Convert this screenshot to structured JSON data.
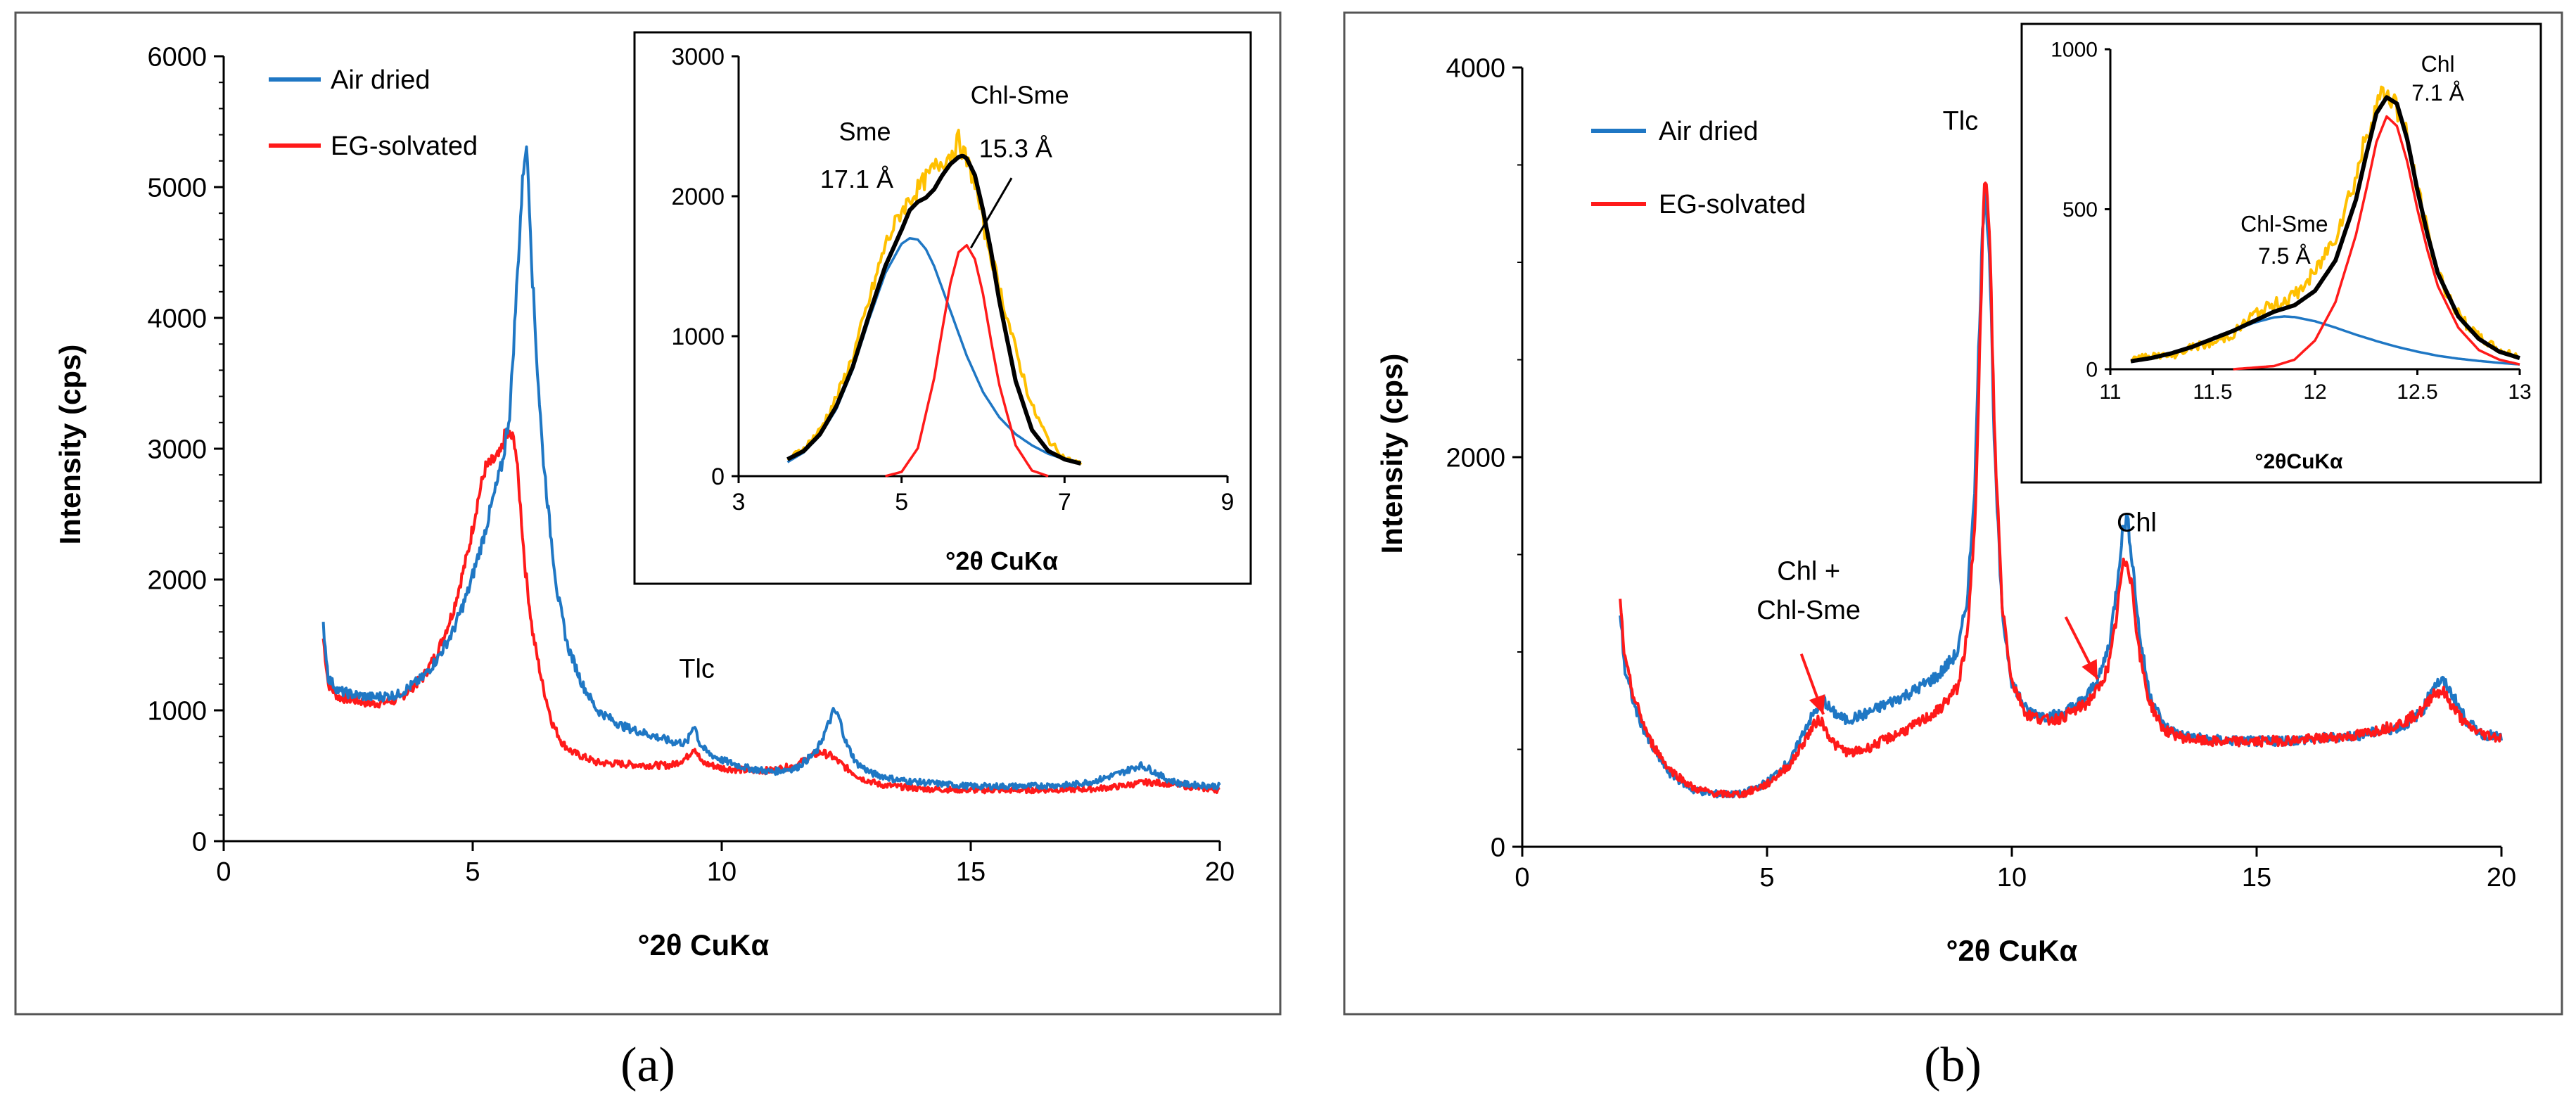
{
  "colors": {
    "air": "#1f77c4",
    "eg": "#ff1a1a",
    "measured": "#ffc000",
    "sum": "#000000",
    "axis": "#000000"
  },
  "chart_data": [
    {
      "type": "line",
      "panel": "(a)",
      "xlabel": "°2θ CuKα",
      "ylabel": "Intensity (cps)",
      "xlim": [
        0,
        20
      ],
      "ylim": [
        0,
        6000
      ],
      "xticks": [
        0,
        5,
        10,
        15,
        20
      ],
      "yticks": [
        0,
        1000,
        2000,
        3000,
        4000,
        5000,
        6000
      ],
      "legend": [
        "Air dried",
        "EG-solvated"
      ],
      "annotations": [
        {
          "text": "Tlc",
          "x": 9.5,
          "y": 1250
        }
      ],
      "series": [
        {
          "name": "Air dried",
          "x": [
            2.0,
            2.1,
            2.3,
            2.6,
            3.0,
            3.5,
            4.0,
            4.3,
            4.6,
            4.9,
            5.2,
            5.4,
            5.6,
            5.75,
            5.85,
            5.95,
            6.02,
            6.06,
            6.1,
            6.15,
            6.2,
            6.3,
            6.4,
            6.55,
            6.7,
            6.9,
            7.2,
            7.5,
            8.0,
            8.5,
            9.0,
            9.3,
            9.45,
            9.55,
            9.7,
            10.0,
            10.5,
            11.0,
            11.5,
            11.9,
            12.15,
            12.25,
            12.35,
            12.5,
            12.7,
            13.0,
            13.5,
            14.0,
            15.0,
            16.0,
            17.0,
            17.5,
            18.0,
            18.4,
            18.6,
            18.9,
            19.2,
            19.5,
            20.0
          ],
          "y": [
            1650,
            1250,
            1150,
            1120,
            1100,
            1120,
            1250,
            1400,
            1600,
            1900,
            2300,
            2600,
            2900,
            3300,
            4000,
            4700,
            5150,
            5300,
            5200,
            4800,
            4300,
            3600,
            3000,
            2400,
            1900,
            1500,
            1200,
            1000,
            880,
            820,
            760,
            750,
            900,
            750,
            680,
            620,
            560,
            530,
            560,
            680,
            900,
            1000,
            950,
            750,
            600,
            520,
            470,
            450,
            420,
            420,
            430,
            460,
            520,
            580,
            550,
            480,
            440,
            430,
            420
          ]
        },
        {
          "name": "EG-solvated",
          "x": [
            2.0,
            2.1,
            2.3,
            2.6,
            3.0,
            3.5,
            4.0,
            4.3,
            4.6,
            4.9,
            5.1,
            5.25,
            5.4,
            5.55,
            5.65,
            5.75,
            5.85,
            5.95,
            6.05,
            6.2,
            6.4,
            6.6,
            6.8,
            7.0,
            7.5,
            8.0,
            8.5,
            9.0,
            9.3,
            9.45,
            9.6,
            10.0,
            10.5,
            11.0,
            11.5,
            11.8,
            12.0,
            12.2,
            12.5,
            12.8,
            13.2,
            14.0,
            15.0,
            16.0,
            17.0,
            17.5,
            18.0,
            18.5,
            19.0,
            19.5,
            20.0
          ],
          "y": [
            1550,
            1200,
            1100,
            1080,
            1050,
            1080,
            1250,
            1450,
            1750,
            2200,
            2600,
            2850,
            2900,
            2950,
            3100,
            3100,
            3050,
            2600,
            2100,
            1600,
            1200,
            900,
            750,
            680,
            600,
            590,
            580,
            580,
            640,
            720,
            600,
            560,
            540,
            540,
            580,
            650,
            680,
            650,
            560,
            480,
            430,
            400,
            390,
            390,
            395,
            400,
            420,
            450,
            440,
            410,
            390
          ]
        }
      ],
      "inset": {
        "xlabel": "°2θ CuKα",
        "xlim": [
          3,
          9
        ],
        "ylim": [
          0,
          3000
        ],
        "xticks": [
          3,
          5,
          7,
          9
        ],
        "yticks": [
          0,
          1000,
          2000,
          3000
        ],
        "annotations": [
          {
            "text": "Sme",
            "x": 4.55,
            "y": 2400
          },
          {
            "text": "17.1 Å",
            "x": 4.45,
            "y": 2060
          },
          {
            "text": "Chl-Sme",
            "x": 6.45,
            "y": 2660
          },
          {
            "text": "15.3 Å",
            "x": 6.4,
            "y": 2280
          }
        ],
        "series": [
          {
            "name": "measured",
            "x": [
              3.6,
              3.8,
              4.0,
              4.2,
              4.4,
              4.6,
              4.8,
              5.0,
              5.2,
              5.4,
              5.6,
              5.7,
              5.8,
              5.9,
              6.0,
              6.2,
              6.4,
              6.6,
              6.8,
              7.0,
              7.2
            ],
            "y": [
              120,
              200,
              330,
              560,
              850,
              1250,
              1650,
              1900,
              2050,
              2200,
              2300,
              2400,
              2250,
              2100,
              1800,
              1350,
              900,
              500,
              260,
              130,
              90
            ]
          },
          {
            "name": "Sme component",
            "x": [
              3.6,
              3.8,
              4.0,
              4.2,
              4.4,
              4.6,
              4.8,
              5.0,
              5.1,
              5.2,
              5.3,
              5.4,
              5.6,
              5.8,
              6.0,
              6.2,
              6.4,
              6.6,
              6.8,
              7.0,
              7.2
            ],
            "y": [
              100,
              170,
              290,
              480,
              760,
              1120,
              1450,
              1660,
              1700,
              1690,
              1620,
              1500,
              1180,
              860,
              600,
              420,
              300,
              220,
              160,
              120,
              90
            ]
          },
          {
            "name": "Chl-Sme component",
            "x": [
              4.8,
              5.0,
              5.2,
              5.4,
              5.5,
              5.6,
              5.7,
              5.8,
              5.9,
              6.0,
              6.1,
              6.2,
              6.4,
              6.6,
              6.8
            ],
            "y": [
              0,
              30,
              200,
              700,
              1050,
              1380,
              1600,
              1650,
              1550,
              1300,
              960,
              650,
              220,
              40,
              0
            ]
          },
          {
            "name": "sum",
            "x": [
              3.6,
              3.8,
              4.0,
              4.2,
              4.4,
              4.6,
              4.8,
              5.0,
              5.1,
              5.2,
              5.3,
              5.4,
              5.5,
              5.6,
              5.7,
              5.75,
              5.8,
              5.9,
              6.0,
              6.1,
              6.2,
              6.4,
              6.6,
              6.8,
              7.0,
              7.2
            ],
            "y": [
              120,
              180,
              300,
              500,
              780,
              1150,
              1500,
              1760,
              1900,
              1960,
              1990,
              2050,
              2150,
              2230,
              2280,
              2290,
              2270,
              2150,
              1900,
              1600,
              1250,
              680,
              330,
              180,
              120,
              90
            ]
          }
        ]
      }
    },
    {
      "type": "line",
      "panel": "(b)",
      "xlabel": "°2θ CuKα",
      "ylabel": "Intensity (cps)",
      "xlim": [
        0,
        20
      ],
      "ylim": [
        0,
        4000
      ],
      "xticks": [
        0,
        5,
        10,
        15,
        20
      ],
      "yticks": [
        0,
        2000,
        4000
      ],
      "legend": [
        "Air dried",
        "EG-solvated"
      ],
      "annotations": [
        {
          "text": "Tlc",
          "x": 8.95,
          "y": 3680
        },
        {
          "text": "Chl",
          "x": 12.55,
          "y": 1620
        },
        {
          "text": "Chl +",
          "x": 5.85,
          "y": 1370
        },
        {
          "text": "Chl-Sme",
          "x": 5.85,
          "y": 1170
        }
      ],
      "series": [
        {
          "name": "Air dried",
          "x": [
            2.0,
            2.1,
            2.3,
            2.6,
            3.0,
            3.5,
            4.0,
            4.5,
            5.0,
            5.5,
            5.8,
            6.0,
            6.15,
            6.3,
            6.6,
            7.0,
            7.5,
            8.0,
            8.5,
            8.9,
            9.1,
            9.25,
            9.35,
            9.45,
            9.55,
            9.65,
            9.8,
            10.0,
            10.3,
            10.7,
            11.0,
            11.5,
            11.8,
            12.0,
            12.15,
            12.25,
            12.35,
            12.45,
            12.6,
            12.8,
            13.1,
            13.5,
            14.0,
            15.0,
            16.0,
            17.0,
            17.5,
            18.0,
            18.4,
            18.6,
            18.8,
            19.0,
            19.3,
            19.6,
            20.0
          ],
          "y": [
            1200,
            900,
            720,
            530,
            380,
            290,
            270,
            270,
            330,
            450,
            620,
            700,
            760,
            700,
            650,
            680,
            740,
            800,
            880,
            1000,
            1300,
            1900,
            2800,
            3450,
            3000,
            2000,
            1200,
            850,
            700,
            670,
            680,
            760,
            880,
            1050,
            1350,
            1600,
            1700,
            1500,
            1100,
            800,
            620,
            570,
            550,
            540,
            550,
            570,
            590,
            620,
            700,
            830,
            850,
            780,
            640,
            580,
            560
          ]
        },
        {
          "name": "EG-solvated",
          "x": [
            2.0,
            2.1,
            2.3,
            2.6,
            3.0,
            3.5,
            4.0,
            4.5,
            5.0,
            5.5,
            5.8,
            6.0,
            6.1,
            6.2,
            6.4,
            6.7,
            7.0,
            7.5,
            8.0,
            8.5,
            8.9,
            9.1,
            9.25,
            9.35,
            9.45,
            9.55,
            9.65,
            9.8,
            10.0,
            10.3,
            10.7,
            11.0,
            11.5,
            11.8,
            12.0,
            12.15,
            12.25,
            12.35,
            12.45,
            12.6,
            12.8,
            13.1,
            13.5,
            14.0,
            15.0,
            16.0,
            17.0,
            17.5,
            18.0,
            18.4,
            18.6,
            18.8,
            19.0,
            19.3,
            19.6,
            20.0
          ],
          "y": [
            1250,
            950,
            750,
            550,
            400,
            300,
            270,
            270,
            320,
            430,
            560,
            640,
            650,
            600,
            520,
            480,
            500,
            560,
            620,
            700,
            820,
            1100,
            1700,
            2600,
            3500,
            3100,
            2100,
            1250,
            850,
            680,
            650,
            660,
            730,
            820,
            950,
            1200,
            1420,
            1480,
            1350,
            1000,
            750,
            600,
            560,
            540,
            540,
            550,
            570,
            600,
            640,
            700,
            790,
            800,
            720,
            620,
            580,
            560
          ]
        }
      ],
      "arrows": [
        {
          "from_x": 5.7,
          "from_y": 990,
          "to_x": 6.15,
          "to_y": 680
        },
        {
          "from_x": 11.1,
          "from_y": 1180,
          "to_x": 11.75,
          "to_y": 860
        }
      ],
      "inset": {
        "xlabel": "°2θCuKα",
        "xlim": [
          11,
          13
        ],
        "ylim": [
          0,
          1000
        ],
        "xticks": [
          11,
          11.5,
          12,
          12.5,
          13
        ],
        "xtick_labels": [
          "11",
          "11.5",
          "12",
          "12.5",
          "13"
        ],
        "yticks": [
          0,
          500,
          1000
        ],
        "annotations": [
          {
            "text": "Chl",
            "x": 12.6,
            "y": 930
          },
          {
            "text": "7.1 Å",
            "x": 12.6,
            "y": 840
          },
          {
            "text": "Chl-Sme",
            "x": 11.85,
            "y": 430
          },
          {
            "text": "7.5 Å",
            "x": 11.85,
            "y": 330
          }
        ],
        "series": [
          {
            "name": "measured",
            "x": [
              11.1,
              11.2,
              11.3,
              11.4,
              11.5,
              11.6,
              11.7,
              11.8,
              11.9,
              12.0,
              12.1,
              12.2,
              12.25,
              12.3,
              12.35,
              12.4,
              12.45,
              12.5,
              12.55,
              12.6,
              12.7,
              12.8,
              12.9,
              13.0
            ],
            "y": [
              30,
              45,
              40,
              70,
              80,
              110,
              170,
              200,
              230,
              300,
              420,
              600,
              730,
              830,
              870,
              820,
              720,
              560,
              420,
              300,
              170,
              100,
              60,
              40
            ]
          },
          {
            "name": "Chl-Sme component",
            "x": [
              11.1,
              11.2,
              11.3,
              11.4,
              11.5,
              11.6,
              11.7,
              11.8,
              11.85,
              11.9,
              12.0,
              12.1,
              12.2,
              12.3,
              12.4,
              12.5,
              12.6,
              12.7,
              12.8,
              12.9,
              13.0
            ],
            "y": [
              25,
              35,
              50,
              70,
              95,
              120,
              145,
              162,
              165,
              163,
              150,
              130,
              108,
              88,
              70,
              55,
              42,
              33,
              26,
              20,
              15
            ]
          },
          {
            "name": "Chl component",
            "x": [
              11.6,
              11.8,
              11.9,
              12.0,
              12.1,
              12.2,
              12.25,
              12.3,
              12.35,
              12.4,
              12.45,
              12.5,
              12.55,
              12.6,
              12.7,
              12.8,
              12.9,
              13.0
            ],
            "y": [
              0,
              10,
              30,
              90,
              210,
              420,
              560,
              710,
              790,
              760,
              650,
              500,
              370,
              260,
              130,
              60,
              30,
              15
            ]
          },
          {
            "name": "sum",
            "x": [
              11.1,
              11.2,
              11.3,
              11.4,
              11.5,
              11.6,
              11.7,
              11.8,
              11.9,
              12.0,
              12.1,
              12.2,
              12.25,
              12.3,
              12.35,
              12.4,
              12.45,
              12.5,
              12.55,
              12.6,
              12.7,
              12.8,
              12.9,
              13.0
            ],
            "y": [
              25,
              35,
              50,
              70,
              95,
              120,
              150,
              180,
              200,
              245,
              340,
              530,
              670,
              800,
              850,
              830,
              720,
              560,
              420,
              300,
              165,
              95,
              55,
              35
            ]
          }
        ]
      }
    }
  ]
}
